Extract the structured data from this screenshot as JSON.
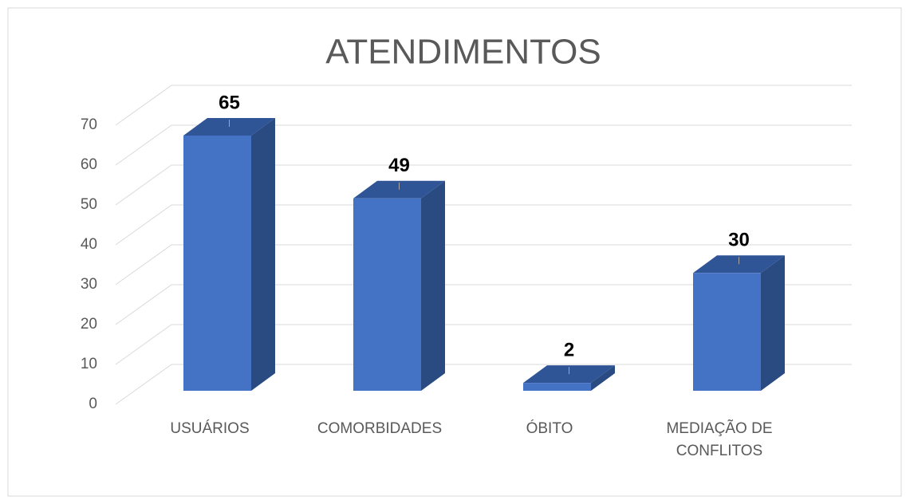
{
  "chart_data": {
    "type": "bar3d",
    "title": "ATENDIMENTOS",
    "categories": [
      "USUÁRIOS",
      "COMORBIDADES",
      "ÓBITO",
      "MEDIAÇÃO DE CONFLITOS"
    ],
    "values": [
      65,
      49,
      2,
      30
    ],
    "color": "#4472c4",
    "ylim": [
      0,
      70
    ],
    "yticks": [
      0,
      10,
      20,
      30,
      40,
      50,
      60,
      70
    ],
    "grid": true
  }
}
